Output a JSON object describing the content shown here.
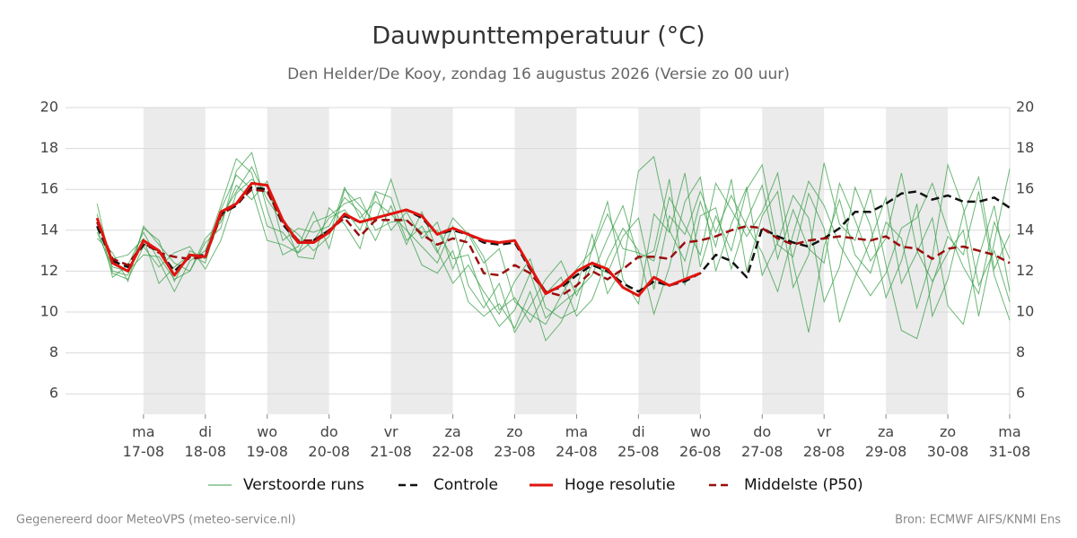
{
  "chart_data": {
    "type": "line",
    "title": "Dauwpunttemperatuur (°C)",
    "subtitle": "Den Helder/De Kooy, zondag 16 augustus 2026 (Versie zo 00 uur)",
    "footer_left": "Gegenereerd door MeteoVPS (meteo-service.nl)",
    "footer_right": "Bron: ECMWF AIFS/KNMI Ens",
    "xlim": [
      -1.26,
      14
    ],
    "xticks": [
      {
        "value": 0,
        "label": [
          "ma",
          "17-08"
        ]
      },
      {
        "value": 1,
        "label": [
          "di",
          "18-08"
        ]
      },
      {
        "value": 2,
        "label": [
          "wo",
          "19-08"
        ]
      },
      {
        "value": 3,
        "label": [
          "do",
          "20-08"
        ]
      },
      {
        "value": 4,
        "label": [
          "vr",
          "21-08"
        ]
      },
      {
        "value": 5,
        "label": [
          "za",
          "22-08"
        ]
      },
      {
        "value": 6,
        "label": [
          "zo",
          "23-08"
        ]
      },
      {
        "value": 7,
        "label": [
          "ma",
          "24-08"
        ]
      },
      {
        "value": 8,
        "label": [
          "di",
          "25-08"
        ]
      },
      {
        "value": 9,
        "label": [
          "wo",
          "26-08"
        ]
      },
      {
        "value": 10,
        "label": [
          "do",
          "27-08"
        ]
      },
      {
        "value": 11,
        "label": [
          "vr",
          "28-08"
        ]
      },
      {
        "value": 12,
        "label": [
          "za",
          "29-08"
        ]
      },
      {
        "value": 13,
        "label": [
          "zo",
          "30-08"
        ]
      },
      {
        "value": 14,
        "label": [
          "ma",
          "31-08"
        ]
      }
    ],
    "shade_alternate_days": true,
    "ylim": [
      5,
      20
    ],
    "yticks": [
      6,
      8,
      10,
      12,
      14,
      16,
      18,
      20
    ],
    "right_axis": true,
    "grid": true,
    "x": [
      -0.75,
      -0.5,
      -0.25,
      0,
      0.25,
      0.5,
      0.75,
      1,
      1.25,
      1.5,
      1.75,
      2,
      2.25,
      2.5,
      2.75,
      3,
      3.25,
      3.5,
      3.75,
      4,
      4.25,
      4.5,
      4.75,
      5,
      5.25,
      5.5,
      5.75,
      6,
      6.25,
      6.5,
      6.75,
      7,
      7.25,
      7.5,
      7.75,
      8,
      8.25,
      8.5,
      8.75,
      9,
      9.25,
      9.5,
      9.75,
      10,
      10.25,
      10.5,
      10.75,
      11,
      11.25,
      11.5,
      11.75,
      12,
      12.25,
      12.5,
      12.75,
      13,
      13.25,
      13.5,
      13.75,
      14
    ],
    "series": [
      {
        "name": "Verstoorde runs",
        "color": "#3a9f48",
        "runs": [
          [
            14.8,
            11.7,
            12.3,
            13.9,
            12.5,
            11.0,
            12.5,
            13.0,
            15.2,
            17.5,
            16.8,
            14.2,
            13.9,
            12.9,
            13.5,
            14.6,
            15.0,
            14.0,
            15.9,
            15.6,
            13.5,
            14.2,
            12.9,
            14.6,
            13.8,
            12.4,
            13.1,
            10.5,
            9.9,
            9.4,
            10.8,
            12.1,
            13.0,
            14.8,
            13.1,
            12.9,
            12.5,
            15.6,
            14.2,
            12.8,
            16.3,
            15.0,
            13.7,
            14.9,
            16.8,
            12.4,
            9.0,
            13.2,
            15.5,
            12.8,
            11.9,
            14.4,
            13.6,
            10.2,
            12.7,
            17.2,
            15.1,
            11.3,
            13.0,
            10.5
          ],
          [
            13.6,
            12.9,
            11.5,
            14.2,
            13.3,
            12.4,
            12.0,
            13.4,
            14.1,
            16.9,
            17.8,
            15.0,
            12.8,
            13.2,
            14.9,
            13.1,
            16.0,
            15.2,
            14.4,
            16.5,
            14.1,
            12.3,
            11.9,
            13.0,
            10.5,
            9.8,
            10.4,
            9.2,
            11.0,
            8.6,
            9.5,
            11.2,
            13.8,
            10.9,
            12.2,
            16.9,
            17.6,
            14.0,
            12.5,
            15.4,
            13.2,
            16.5,
            12.0,
            14.7,
            15.9,
            11.2,
            12.8,
            17.3,
            14.3,
            13.5,
            16.0,
            12.3,
            9.1,
            8.7,
            11.4,
            13.7,
            12.8,
            15.9,
            11.8,
            9.6
          ],
          [
            14.1,
            11.9,
            11.6,
            13.2,
            12.2,
            12.9,
            13.2,
            12.1,
            13.5,
            15.8,
            16.5,
            15.8,
            14.6,
            12.7,
            12.6,
            15.1,
            14.3,
            13.1,
            15.8,
            14.0,
            14.9,
            13.6,
            14.4,
            12.1,
            13.9,
            12.7,
            10.1,
            10.7,
            9.5,
            10.9,
            11.7,
            9.8,
            10.6,
            12.6,
            14.1,
            13.0,
            9.9,
            12.2,
            15.4,
            16.6,
            12.0,
            14.3,
            16.1,
            11.8,
            13.4,
            15.7,
            14.6,
            10.5,
            12.2,
            16.1,
            14.2,
            10.7,
            12.5,
            15.3,
            9.8,
            11.6,
            14.8,
            16.6,
            12.1,
            13.8
          ],
          [
            13.9,
            12.2,
            12.0,
            12.8,
            12.7,
            11.6,
            12.0,
            13.6,
            14.4,
            16.2,
            15.5,
            16.4,
            13.5,
            14.1,
            13.9,
            14.2,
            15.6,
            14.9,
            13.5,
            15.2,
            13.3,
            14.9,
            13.0,
            11.4,
            12.3,
            11.0,
            9.9,
            11.5,
            12.6,
            10.2,
            9.7,
            10.1,
            13.1,
            15.4,
            11.6,
            10.4,
            14.8,
            13.9,
            16.8,
            12.2,
            14.7,
            13.0,
            16.0,
            17.2,
            13.3,
            12.7,
            15.8,
            14.1,
            9.5,
            11.7,
            13.5,
            15.6,
            11.4,
            12.9,
            14.6,
            10.3,
            9.4,
            12.7,
            15.2,
            11.0
          ],
          [
            14.4,
            12.6,
            12.8,
            13.6,
            11.4,
            12.2,
            12.8,
            12.4,
            15.0,
            16.7,
            16.0,
            13.5,
            13.3,
            12.9,
            14.4,
            14.7,
            15.3,
            15.6,
            14.0,
            14.4,
            14.5,
            13.9,
            14.0,
            12.6,
            12.8,
            10.6,
            9.3,
            10.1,
            11.9,
            9.7,
            10.4,
            11.0,
            11.8,
            13.6,
            15.2,
            12.6,
            13.0,
            16.5,
            11.3,
            14.7,
            15.1,
            12.1,
            14.5,
            16.2,
            12.6,
            15.0,
            13.1,
            12.4,
            16.3,
            14.5,
            12.5,
            13.6,
            16.8,
            13.0,
            11.5,
            12.9,
            14.0,
            9.8,
            13.4,
            17.0
          ],
          [
            15.3,
            12.0,
            11.8,
            14.1,
            13.5,
            11.5,
            13.0,
            12.6,
            14.6,
            15.9,
            17.1,
            15.5,
            14.4,
            13.8,
            13.0,
            13.7,
            16.1,
            14.6,
            15.4,
            14.8,
            14.0,
            13.2,
            12.4,
            14.2,
            11.3,
            10.2,
            11.4,
            9.0,
            10.3,
            11.6,
            12.5,
            10.8,
            12.3,
            11.9,
            13.7,
            14.6,
            11.1,
            14.7,
            13.8,
            15.9,
            13.9,
            15.7,
            14.2,
            12.9,
            11.0,
            13.8,
            16.4,
            15.2,
            13.3,
            12.0,
            10.8,
            11.9,
            14.1,
            14.6,
            16.3,
            14.0,
            12.2,
            10.9,
            14.4,
            12.6
          ]
        ]
      },
      {
        "name": "Controle",
        "color": "#111111",
        "dash": true,
        "values": [
          14.2,
          12.5,
          12.2,
          13.3,
          13.0,
          12.0,
          12.7,
          12.8,
          14.8,
          15.2,
          16.1,
          16.0,
          14.3,
          13.4,
          13.5,
          14.0,
          14.7,
          14.4,
          14.6,
          14.8,
          15.0,
          14.6,
          13.8,
          14.0,
          13.8,
          13.4,
          13.3,
          13.4,
          12.1,
          11.0,
          11.2,
          11.8,
          12.3,
          12.0,
          11.4,
          11.0,
          11.5,
          11.3,
          11.5,
          11.9,
          12.8,
          12.5,
          11.7,
          14.1,
          13.7,
          13.4,
          13.2,
          13.6,
          14.1,
          14.9,
          14.9,
          15.3,
          15.8,
          15.9,
          15.5,
          15.7,
          15.4,
          15.4,
          15.6,
          15.1
        ]
      },
      {
        "name": "Hoge resolutie",
        "color": "#e0140f",
        "values": [
          14.6,
          12.4,
          12.0,
          13.5,
          13.0,
          11.8,
          12.8,
          12.7,
          14.9,
          15.3,
          16.3,
          16.2,
          14.5,
          13.4,
          13.4,
          13.9,
          14.8,
          14.4,
          14.6,
          14.8,
          15.0,
          14.7,
          13.8,
          14.1,
          13.8,
          13.5,
          13.4,
          13.5,
          12.2,
          10.9,
          11.3,
          12.0,
          12.4,
          12.1,
          11.2,
          10.8,
          11.7,
          11.3,
          11.6,
          11.9,
          null,
          null,
          null,
          null,
          null,
          null,
          null,
          null,
          null,
          null,
          null,
          null,
          null,
          null,
          null,
          null,
          null,
          null,
          null,
          null
        ]
      },
      {
        "name": "Middelste (P50)",
        "color": "#9b0d0d",
        "dash": true,
        "values": [
          14.4,
          12.6,
          12.3,
          13.4,
          12.9,
          12.7,
          12.6,
          12.7,
          14.7,
          15.3,
          16.0,
          15.9,
          14.4,
          13.5,
          13.5,
          14.0,
          14.6,
          13.7,
          14.5,
          14.5,
          14.5,
          13.8,
          13.3,
          13.6,
          13.4,
          11.9,
          11.8,
          12.3,
          11.9,
          11.0,
          10.8,
          11.3,
          12.0,
          11.6,
          12.1,
          12.7,
          12.7,
          12.6,
          13.4,
          13.5,
          13.7,
          14.0,
          14.2,
          14.1,
          13.6,
          13.3,
          13.5,
          13.6,
          13.7,
          13.6,
          13.5,
          13.7,
          13.2,
          13.1,
          12.6,
          13.1,
          13.2,
          13.0,
          12.8,
          12.4
        ]
      }
    ]
  }
}
